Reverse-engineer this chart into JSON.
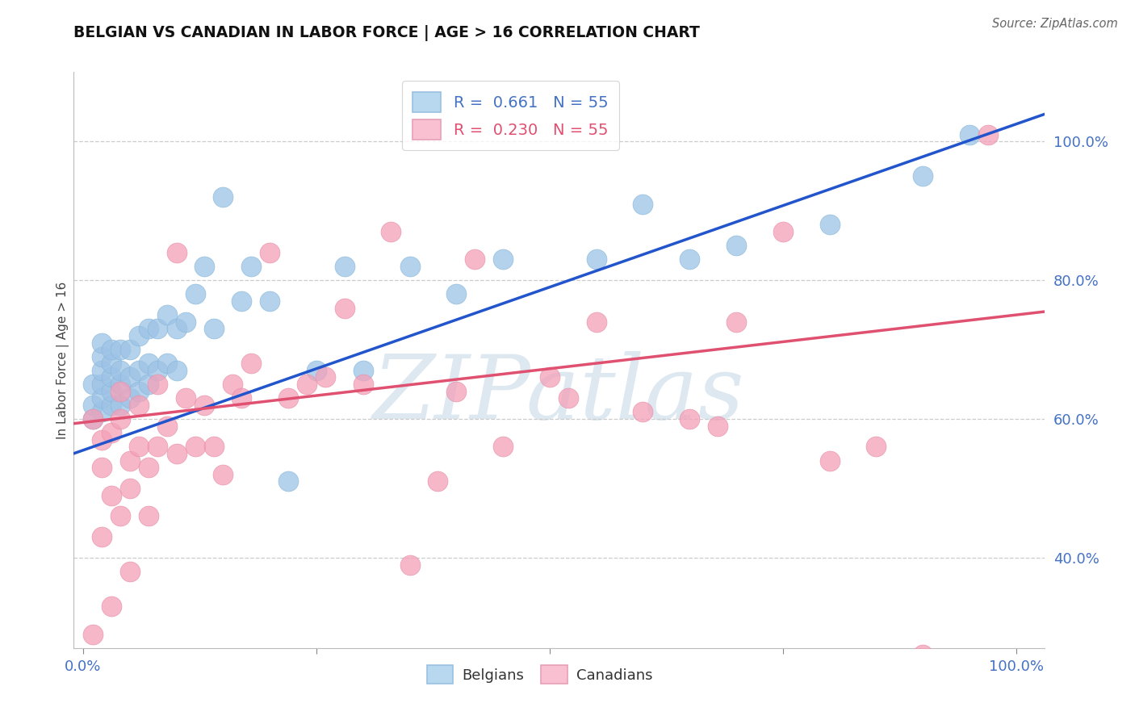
{
  "title": "BELGIAN VS CANADIAN IN LABOR FORCE | AGE > 16 CORRELATION CHART",
  "source": "Source: ZipAtlas.com",
  "ylabel": "In Labor Force | Age > 16",
  "xlim": [
    -0.01,
    1.03
  ],
  "ylim": [
    0.27,
    1.1
  ],
  "xtick_positions": [
    0.0,
    0.25,
    0.5,
    0.75,
    1.0
  ],
  "xtick_labels": [
    "0.0%",
    "",
    "",
    "",
    "100.0%"
  ],
  "ytick_positions": [
    0.4,
    0.6,
    0.8,
    1.0
  ],
  "ytick_labels": [
    "40.0%",
    "60.0%",
    "80.0%",
    "100.0%"
  ],
  "belgian_R": "0.661",
  "canadian_R": "0.230",
  "N": "55",
  "belgian_dot_color": "#9dc3e6",
  "canadian_dot_color": "#f4a0b8",
  "belgian_line_color": "#2255cc",
  "canadian_line_color": "#e05070",
  "background_color": "#ffffff",
  "belgian_x": [
    0.01,
    0.01,
    0.01,
    0.02,
    0.02,
    0.02,
    0.02,
    0.02,
    0.02,
    0.03,
    0.03,
    0.03,
    0.03,
    0.03,
    0.04,
    0.04,
    0.04,
    0.04,
    0.05,
    0.05,
    0.05,
    0.06,
    0.06,
    0.06,
    0.07,
    0.07,
    0.07,
    0.08,
    0.08,
    0.09,
    0.09,
    0.1,
    0.1,
    0.11,
    0.12,
    0.13,
    0.14,
    0.15,
    0.17,
    0.18,
    0.2,
    0.22,
    0.25,
    0.28,
    0.3,
    0.35,
    0.4,
    0.45,
    0.55,
    0.6,
    0.65,
    0.7,
    0.8,
    0.9,
    0.95
  ],
  "belgian_y": [
    0.6,
    0.62,
    0.65,
    0.61,
    0.63,
    0.65,
    0.67,
    0.69,
    0.71,
    0.62,
    0.64,
    0.66,
    0.68,
    0.7,
    0.62,
    0.65,
    0.67,
    0.7,
    0.63,
    0.66,
    0.7,
    0.64,
    0.67,
    0.72,
    0.65,
    0.68,
    0.73,
    0.67,
    0.73,
    0.68,
    0.75,
    0.67,
    0.73,
    0.74,
    0.78,
    0.82,
    0.73,
    0.92,
    0.77,
    0.82,
    0.77,
    0.51,
    0.67,
    0.82,
    0.67,
    0.82,
    0.78,
    0.83,
    0.83,
    0.91,
    0.83,
    0.85,
    0.88,
    0.95,
    1.01
  ],
  "canadian_x": [
    0.01,
    0.01,
    0.02,
    0.02,
    0.02,
    0.03,
    0.03,
    0.03,
    0.04,
    0.04,
    0.04,
    0.05,
    0.05,
    0.05,
    0.06,
    0.06,
    0.07,
    0.07,
    0.08,
    0.08,
    0.09,
    0.1,
    0.1,
    0.11,
    0.12,
    0.13,
    0.14,
    0.15,
    0.16,
    0.17,
    0.18,
    0.2,
    0.22,
    0.24,
    0.26,
    0.28,
    0.3,
    0.33,
    0.35,
    0.38,
    0.4,
    0.42,
    0.45,
    0.5,
    0.52,
    0.55,
    0.6,
    0.65,
    0.68,
    0.7,
    0.75,
    0.8,
    0.85,
    0.9,
    0.97
  ],
  "canadian_y": [
    0.29,
    0.6,
    0.43,
    0.53,
    0.57,
    0.33,
    0.49,
    0.58,
    0.46,
    0.6,
    0.64,
    0.38,
    0.5,
    0.54,
    0.56,
    0.62,
    0.46,
    0.53,
    0.56,
    0.65,
    0.59,
    0.55,
    0.84,
    0.63,
    0.56,
    0.62,
    0.56,
    0.52,
    0.65,
    0.63,
    0.68,
    0.84,
    0.63,
    0.65,
    0.66,
    0.76,
    0.65,
    0.87,
    0.39,
    0.51,
    0.64,
    0.83,
    0.56,
    0.66,
    0.63,
    0.74,
    0.61,
    0.6,
    0.59,
    0.74,
    0.87,
    0.54,
    0.56,
    0.26,
    1.01
  ]
}
